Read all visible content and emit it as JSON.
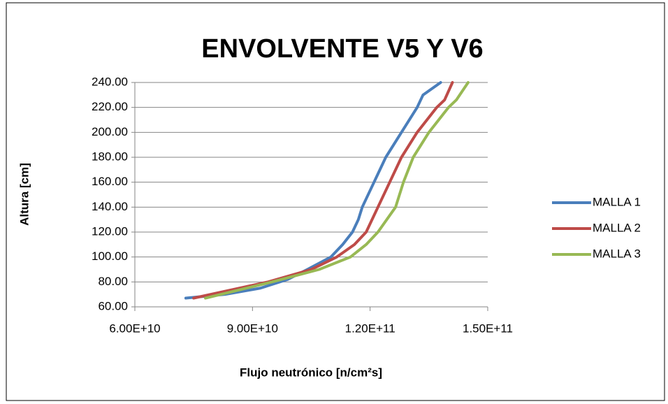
{
  "chart_data": {
    "type": "line",
    "title": "ENVOLVENTE V5 Y V6",
    "x_label": "Flujo neutrónico [n/cm²s]",
    "y_label": "Altura [cm]",
    "xlim": [
      60000000000,
      150000000000
    ],
    "xticks": [
      {
        "value": 60000000000,
        "label": "6.00E+10"
      },
      {
        "value": 90000000000,
        "label": "9.00E+10"
      },
      {
        "value": 120000000000,
        "label": "1.20E+11"
      },
      {
        "value": 150000000000,
        "label": "1.50E+11"
      }
    ],
    "ylim": [
      60,
      240
    ],
    "yticks": [
      {
        "value": 60,
        "label": "60.00"
      },
      {
        "value": 80,
        "label": "80.00"
      },
      {
        "value": 100,
        "label": "100.00"
      },
      {
        "value": 120,
        "label": "120.00"
      },
      {
        "value": 140,
        "label": "140.00"
      },
      {
        "value": 160,
        "label": "160.00"
      },
      {
        "value": 180,
        "label": "180.00"
      },
      {
        "value": 200,
        "label": "200.00"
      },
      {
        "value": 220,
        "label": "220.00"
      },
      {
        "value": 240,
        "label": "240.00"
      }
    ],
    "grid": true,
    "legend": "right",
    "series": [
      {
        "name": "MALLA 1",
        "color": "#4a7ebb",
        "x": [
          73000000000,
          83000000000,
          92000000000,
          99000000000,
          104000000000,
          110000000000,
          113000000000,
          115500000000,
          117000000000,
          118000000000,
          121000000000,
          124000000000,
          128000000000,
          132000000000,
          133500000000,
          138000000000
        ],
        "values": [
          67,
          70,
          75,
          82,
          90,
          100,
          110,
          120,
          130,
          140,
          160,
          180,
          200,
          220,
          230,
          240
        ]
      },
      {
        "name": "MALLA 2",
        "color": "#be4b48",
        "x": [
          75000000000,
          94000000000,
          105000000000,
          111500000000,
          116000000000,
          119000000000,
          122000000000,
          125000000000,
          128000000000,
          132000000000,
          137000000000,
          139000000000,
          141000000000
        ],
        "values": [
          67,
          80,
          90,
          100,
          110,
          120,
          140,
          160,
          180,
          200,
          220,
          226,
          240
        ]
      },
      {
        "name": "MALLA 3",
        "color": "#98b954",
        "x": [
          78000000000,
          95000000000,
          107000000000,
          115000000000,
          119000000000,
          122000000000,
          126500000000,
          128500000000,
          131000000000,
          135000000000,
          140000000000,
          142000000000,
          145000000000
        ],
        "values": [
          67,
          80,
          90,
          100,
          110,
          120,
          140,
          160,
          180,
          200,
          220,
          226,
          240
        ]
      }
    ]
  }
}
